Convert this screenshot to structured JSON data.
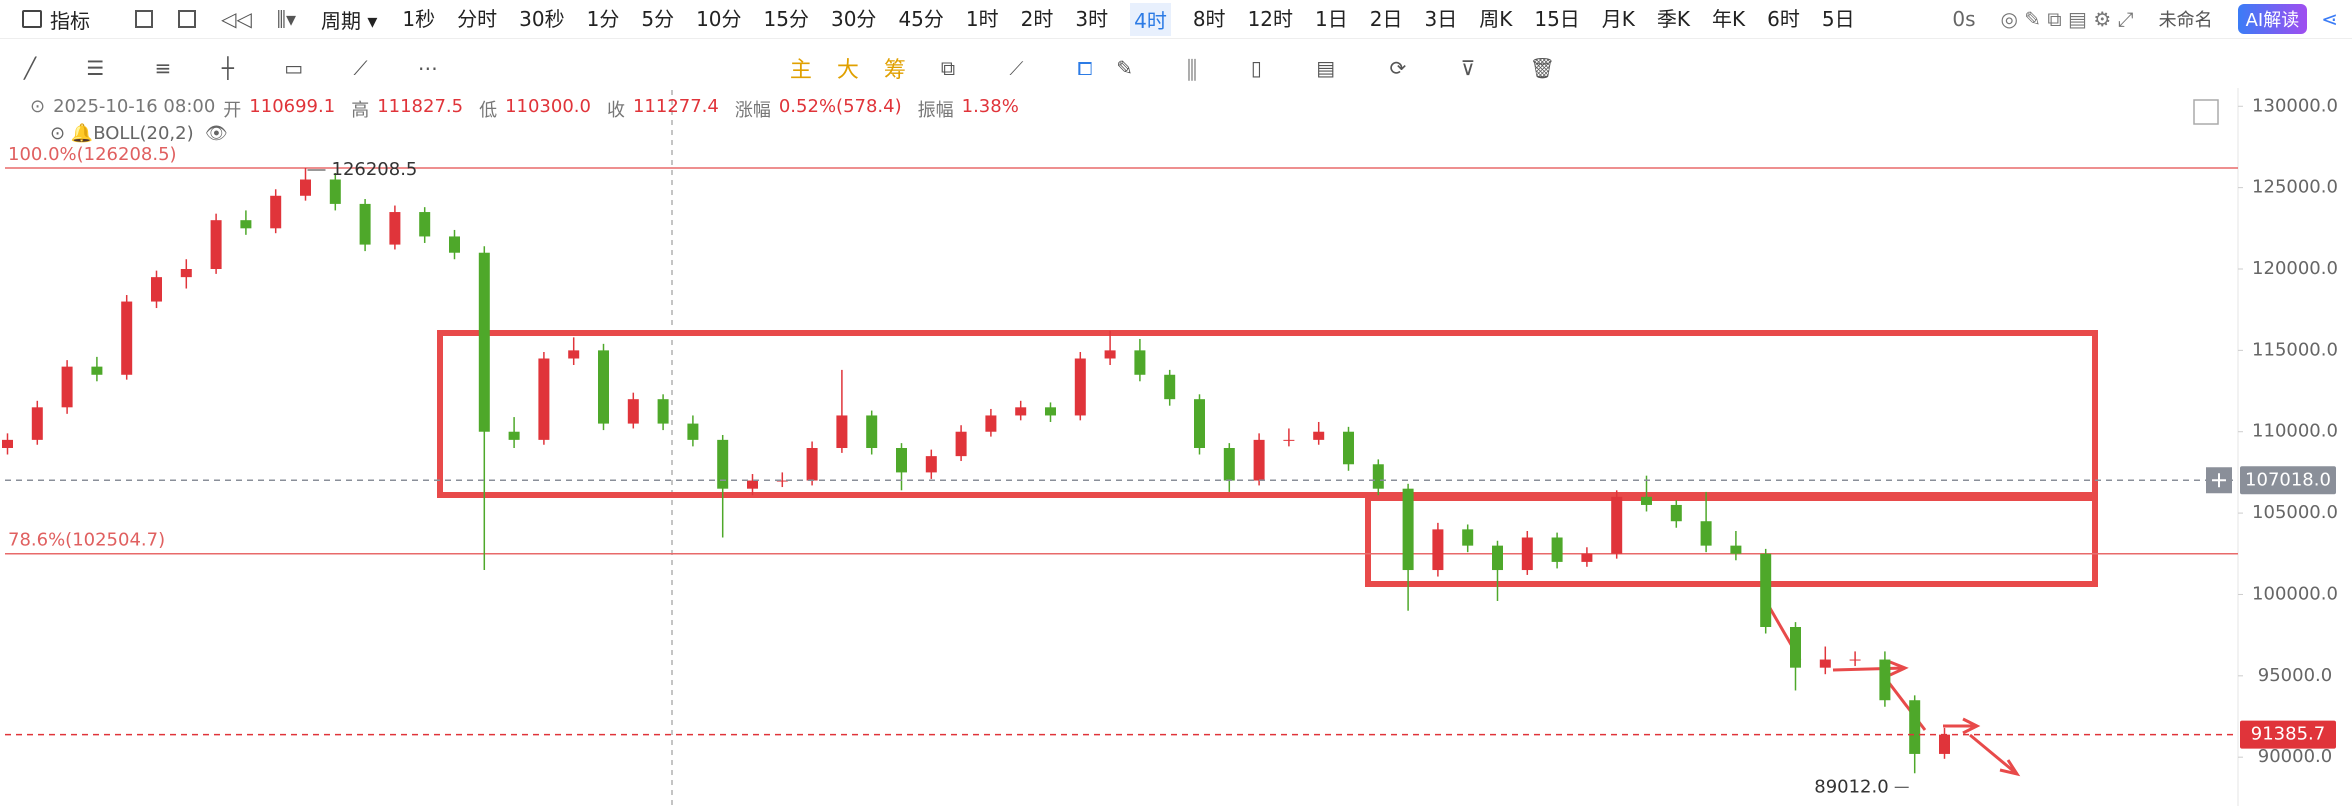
{
  "toolbar": {
    "indicator": "指标",
    "period": "周期",
    "periods": [
      "1秒",
      "分时",
      "30秒",
      "1分",
      "5分",
      "10分",
      "15分",
      "30分",
      "45分",
      "1时",
      "2时",
      "3时",
      "4时",
      "8时",
      "12时",
      "1日",
      "2日",
      "3日",
      "周K",
      "15日",
      "月K",
      "季K",
      "年K",
      "6时",
      "5日"
    ],
    "active_index": 12,
    "timer": "0s",
    "layout_name": "未命名",
    "ai": "AI解读"
  },
  "drawing_toolbar": {
    "main": "主",
    "big": "大",
    "chips": "筹"
  },
  "info": {
    "datetime": "2025-10-16 08:00",
    "open_label": "开",
    "open": "110699.1",
    "high_label": "高",
    "high": "111827.5",
    "low_label": "低",
    "low": "110300.0",
    "close_label": "收",
    "close": "111277.4",
    "change_label": "涨幅",
    "change": "0.52%(578.4)",
    "amplitude_label": "振幅",
    "amplitude": "1.38%",
    "indicator": "BOLL(20,2)"
  },
  "chart_data": {
    "type": "candlestick",
    "up_color": "#e0343a",
    "down_color": "#4ea82a",
    "ylim": [
      87000,
      131000
    ],
    "yticks": [
      {
        "value": 90000,
        "label": "90000.0"
      },
      {
        "value": 95000,
        "label": "95000.0"
      },
      {
        "value": 100000,
        "label": "100000.0"
      },
      {
        "value": 105000,
        "label": "105000.0"
      },
      {
        "value": 110000,
        "label": "110000.0"
      },
      {
        "value": 115000,
        "label": "115000.0"
      },
      {
        "value": 120000,
        "label": "120000.0"
      },
      {
        "value": 125000,
        "label": "125000.0"
      },
      {
        "value": 130000,
        "label": "130000.0"
      }
    ],
    "ohlc": [
      [
        109000,
        109900,
        108600,
        109500
      ],
      [
        109500,
        111900,
        109200,
        111500
      ],
      [
        111500,
        114400,
        111100,
        114000
      ],
      [
        114000,
        114600,
        113100,
        113500
      ],
      [
        113500,
        118400,
        113200,
        118000
      ],
      [
        118000,
        119900,
        117600,
        119500
      ],
      [
        119500,
        120600,
        118800,
        120000
      ],
      [
        120000,
        123400,
        119700,
        123000
      ],
      [
        123000,
        123600,
        122100,
        122500
      ],
      [
        122500,
        124900,
        122200,
        124500
      ],
      [
        124500,
        126208.5,
        124200,
        125500
      ],
      [
        125500,
        125900,
        123600,
        124000
      ],
      [
        124000,
        124300,
        121100,
        121500
      ],
      [
        121500,
        123900,
        121200,
        123500
      ],
      [
        123500,
        123800,
        121600,
        122000
      ],
      [
        122000,
        122400,
        120600,
        121000
      ],
      [
        121000,
        121400,
        101500,
        110000
      ],
      [
        110000,
        110900,
        109000,
        109500
      ],
      [
        109500,
        114900,
        109200,
        114500
      ],
      [
        114500,
        115800,
        114100,
        115000
      ],
      [
        115000,
        115400,
        110100,
        110500
      ],
      [
        110500,
        112400,
        110200,
        112000
      ],
      [
        112000,
        112300,
        110100,
        110500
      ],
      [
        110500,
        111000,
        109100,
        109500
      ],
      [
        109500,
        109800,
        103500,
        106500
      ],
      [
        106500,
        107400,
        106100,
        107000
      ],
      [
        107000,
        107500,
        106600,
        107000
      ],
      [
        107000,
        109400,
        106700,
        109000
      ],
      [
        109000,
        113800,
        108700,
        111000
      ],
      [
        111000,
        111300,
        108600,
        109000
      ],
      [
        109000,
        109300,
        106400,
        107500
      ],
      [
        107500,
        108900,
        107100,
        108500
      ],
      [
        108500,
        110400,
        108200,
        110000
      ],
      [
        110000,
        111400,
        109700,
        111000
      ],
      [
        111000,
        111900,
        110700,
        111500
      ],
      [
        111500,
        111800,
        110600,
        111000
      ],
      [
        111000,
        114900,
        110700,
        114500
      ],
      [
        114500,
        116200,
        114100,
        115000
      ],
      [
        115000,
        115700,
        113100,
        113500
      ],
      [
        113500,
        113800,
        111600,
        112000
      ],
      [
        112000,
        112300,
        108600,
        109000
      ],
      [
        109000,
        109300,
        106300,
        107000
      ],
      [
        107000,
        109900,
        106700,
        109500
      ],
      [
        109500,
        110200,
        109100,
        109500
      ],
      [
        109500,
        110600,
        109200,
        110000
      ],
      [
        110000,
        110300,
        107600,
        108000
      ],
      [
        108000,
        108300,
        106100,
        106500
      ],
      [
        106500,
        106800,
        99000,
        101500
      ],
      [
        101500,
        104400,
        101100,
        104000
      ],
      [
        104000,
        104300,
        102600,
        103000
      ],
      [
        103000,
        103300,
        99600,
        101500
      ],
      [
        101500,
        103900,
        101200,
        103500
      ],
      [
        103500,
        103800,
        101600,
        102000
      ],
      [
        102000,
        102900,
        101700,
        102500
      ],
      [
        102500,
        106400,
        102200,
        106000
      ],
      [
        106000,
        107300,
        105100,
        105500
      ],
      [
        105500,
        105800,
        104100,
        104500
      ],
      [
        104500,
        106300,
        102600,
        103000
      ],
      [
        103000,
        103900,
        102100,
        102500
      ],
      [
        102500,
        102800,
        97600,
        98000
      ],
      [
        98000,
        98300,
        94100,
        95500
      ],
      [
        95500,
        96800,
        95100,
        96000
      ],
      [
        96000,
        96500,
        95600,
        96000
      ],
      [
        96000,
        96500,
        93100,
        93500
      ],
      [
        93500,
        93800,
        89012,
        90200
      ],
      [
        90200,
        91800,
        89900,
        91385.7
      ]
    ],
    "fib_levels": [
      {
        "value": 126208.5,
        "label": "100.0%(126208.5)"
      },
      {
        "value": 102504.7,
        "label": "78.6%(102504.7)"
      }
    ],
    "price_lines": [
      {
        "value": 107018,
        "label": "107018.0",
        "color": "#8a8f99"
      },
      {
        "value": 91385.7,
        "label": "91385.7",
        "color": "#e0343a"
      }
    ],
    "high_label": {
      "value": 126208.5,
      "label": "126208.5"
    },
    "low_label": {
      "value": 89012,
      "label": "89012.0"
    }
  }
}
